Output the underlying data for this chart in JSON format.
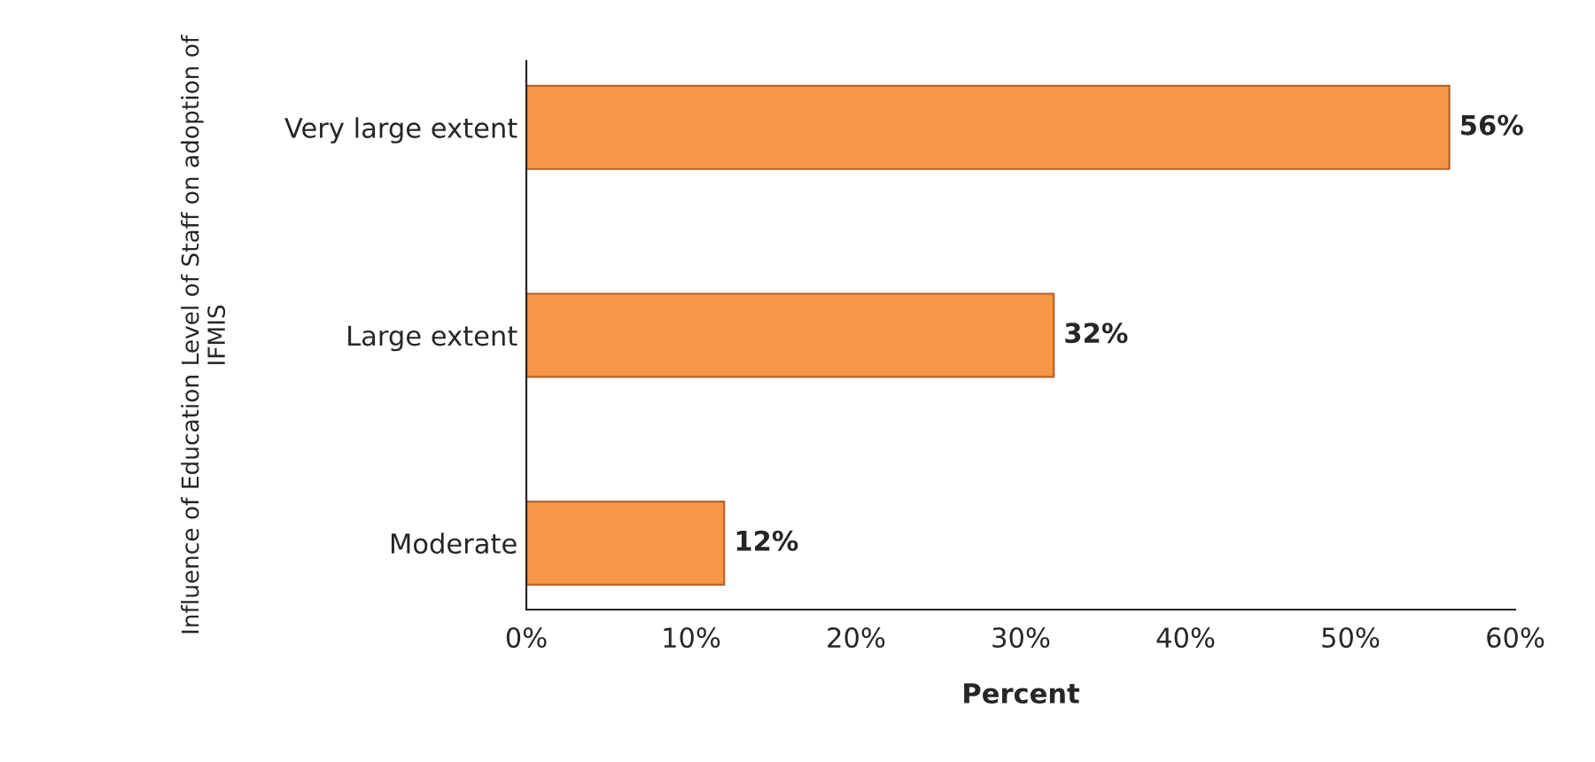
{
  "chart_data": {
    "type": "bar",
    "orientation": "horizontal",
    "xlabel": "Percent",
    "ylabel": "Influence of Education Level of Staff on adoption of IFMIS",
    "categories": [
      "Very large extent",
      "Large extent",
      "Moderate"
    ],
    "values": [
      56,
      32,
      12
    ],
    "value_labels": [
      "56%",
      "32%",
      "12%"
    ],
    "color": "#f79646",
    "xlim": [
      0,
      60
    ],
    "xticks": [
      {
        "value": 0,
        "label": "0%"
      },
      {
        "value": 10,
        "label": "10%"
      },
      {
        "value": 20,
        "label": "20%"
      },
      {
        "value": 30,
        "label": "30%"
      },
      {
        "value": 40,
        "label": "40%"
      },
      {
        "value": 50,
        "label": "50%"
      },
      {
        "value": 60,
        "label": "60%"
      }
    ],
    "grid": false,
    "legend": false
  }
}
